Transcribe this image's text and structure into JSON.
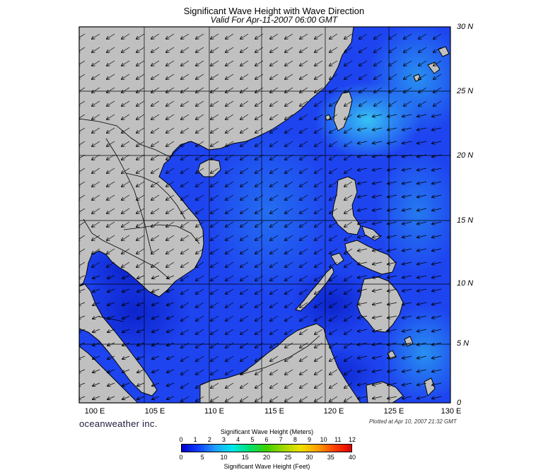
{
  "header": {
    "title": "Significant Wave Height with Wave Direction",
    "subtitle": "Valid For Apr-11-2007 06:00 GMT"
  },
  "map": {
    "lon_range": [
      100,
      130
    ],
    "lat_range": [
      0,
      30
    ],
    "grid_step_degrees": 5,
    "latitude_labels": [
      "30 N",
      "25 N",
      "20 N",
      "15 N",
      "10 N",
      "5 N",
      "0"
    ],
    "longitude_labels": [
      "100 E",
      "105 E",
      "110 E",
      "115 E",
      "120 E",
      "125 E",
      "130 E"
    ],
    "colors": {
      "land": "#c0c0c0",
      "coast": "#000000",
      "ocean_low": "#1e3cf0",
      "ocean_high": "#2aa8f0"
    },
    "arrow_direction": "toward southwest"
  },
  "footer": {
    "brand": "oceanweather inc.",
    "plotted": "Plotted at Apr 10, 2007 21:32 GMT"
  },
  "legend": {
    "meters_title": "Significant Wave Height (Meters)",
    "feet_title": "Significant Wave Height (Feet)",
    "meters_ticks": [
      "0",
      "1",
      "2",
      "3",
      "4",
      "5",
      "6",
      "7",
      "8",
      "9",
      "10",
      "11",
      "12"
    ],
    "feet_ticks": [
      "0",
      "5",
      "10",
      "15",
      "20",
      "25",
      "30",
      "35",
      "40"
    ],
    "color_stops": [
      "#0000c8",
      "#1040ff",
      "#20a0ff",
      "#00e8e8",
      "#00e070",
      "#40d000",
      "#a0d800",
      "#f0e000",
      "#ffa000",
      "#ff4000",
      "#e00000"
    ]
  }
}
